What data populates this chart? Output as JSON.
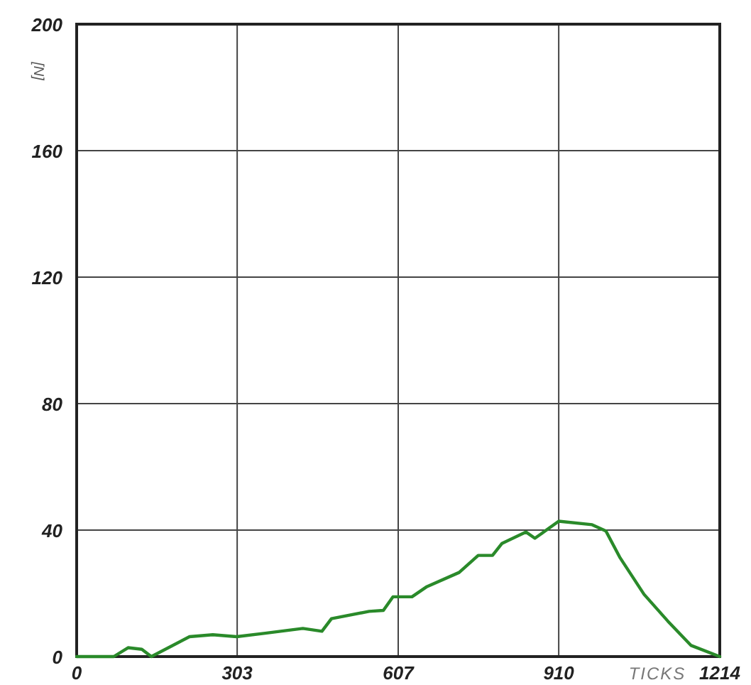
{
  "chart_data": {
    "type": "line",
    "xlabel": "TICKS",
    "ylabel": "[N]",
    "xlim": [
      0,
      1214
    ],
    "xticks": [
      0,
      303,
      607,
      910,
      1214
    ],
    "ylim": [
      0,
      200
    ],
    "yticks": [
      0,
      40,
      80,
      120,
      160,
      200
    ],
    "grid": true,
    "series": [
      {
        "color": "#2a8a2a",
        "x": [
          0,
          34,
          70,
          97,
          123,
          141,
          213,
          257,
          302,
          356,
          427,
          463,
          481,
          552,
          579,
          597,
          633,
          660,
          722,
          758,
          785,
          803,
          848,
          865,
          910,
          973,
          999,
          1026,
          1071,
          1116,
          1160,
          1214
        ],
        "values": [
          0,
          0,
          0,
          2.8,
          2.3,
          0,
          6.3,
          6.9,
          6.3,
          7.4,
          8.9,
          8,
          12,
          14.3,
          14.6,
          18.9,
          18.9,
          22,
          26.6,
          32,
          32,
          35.8,
          39.4,
          37.4,
          42.8,
          41.7,
          39.7,
          31.2,
          19.7,
          11.2,
          3.5,
          0
        ]
      }
    ]
  }
}
